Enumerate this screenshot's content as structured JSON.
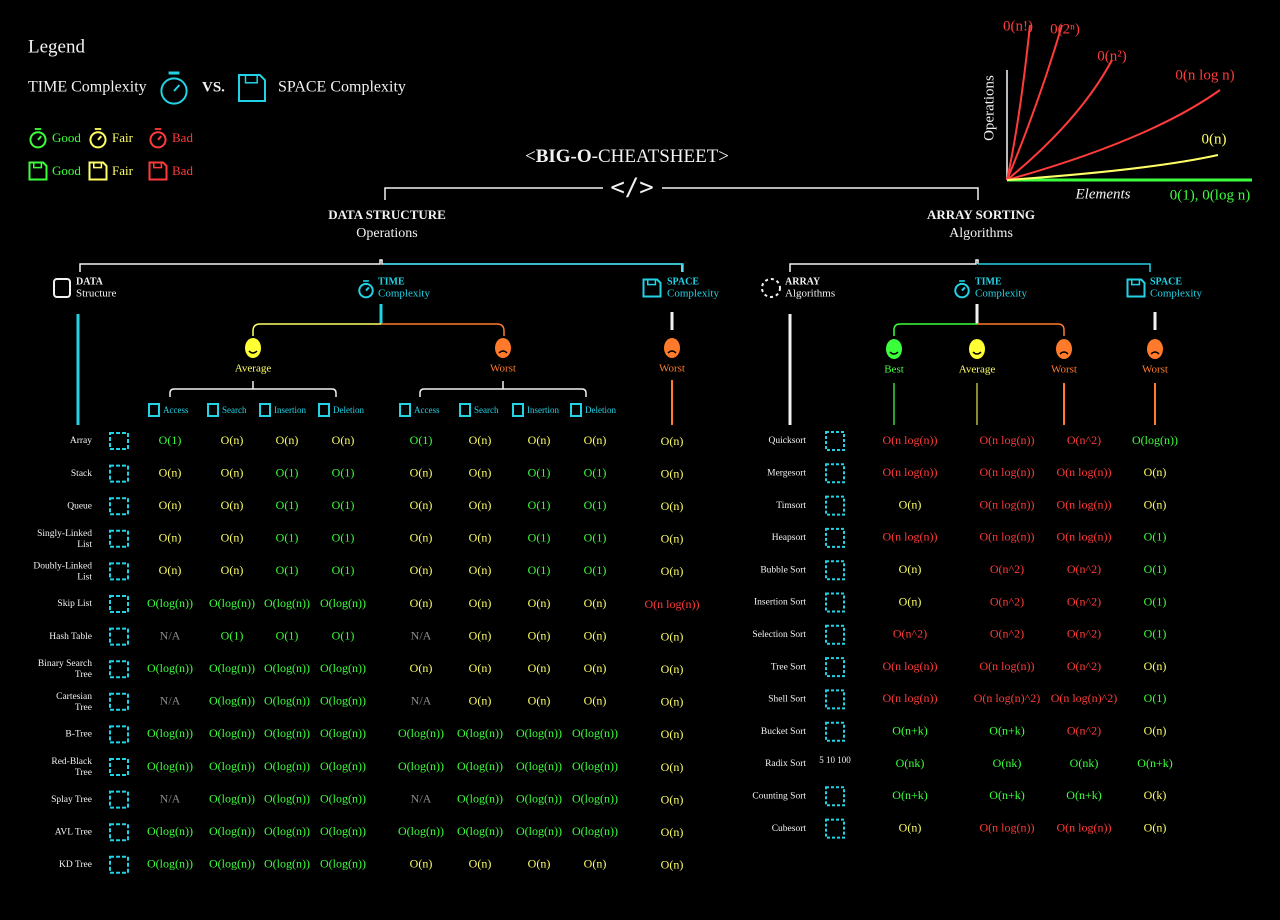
{
  "legend": {
    "title": "Legend",
    "time": "TIME Complexity",
    "vs": "VS.",
    "space": "SPACE Complexity",
    "ratings": [
      {
        "label": "Good",
        "color": "#3cff3c"
      },
      {
        "label": "Fair",
        "color": "#ffff66"
      },
      {
        "label": "Bad",
        "color": "#ff3b3b"
      }
    ]
  },
  "title": {
    "prefix": "<",
    "bold": "BIG-O",
    "suffix": "-CHEATSHEET>",
    "symbol": "</>"
  },
  "graph": {
    "y_label": "Operations",
    "x_label": "Elements",
    "curves": [
      {
        "label": "0(n!)",
        "color": "#ff3b3b"
      },
      {
        "label": "0(2ⁿ)",
        "color": "#ff3b3b"
      },
      {
        "label": "0(n²)",
        "color": "#ff3b3b"
      },
      {
        "label": "0(n log n)",
        "color": "#ff3b3b"
      },
      {
        "label": "0(n)",
        "color": "#ffff66"
      },
      {
        "label": "0(1), 0(log n)",
        "color": "#3cff3c"
      }
    ]
  },
  "na_color": "#8a8a8a",
  "value_rating": {
    "O(1)": 0,
    "O(log(n))": 0,
    "O(n)": 1,
    "O(n log(n))": 2,
    "O(n^2)": 2,
    "O(n log(n)^2)": 2,
    "O(n+k)": 0,
    "O(nk)": 0,
    "O(k)": 1
  },
  "data_structures": {
    "heading": "DATA STRUCTURE",
    "subheading": "Operations",
    "col_structure": [
      "DATA",
      "Structure"
    ],
    "col_time": [
      "TIME",
      "Complexity"
    ],
    "col_space": [
      "SPACE",
      "Complexity"
    ],
    "average": "Average",
    "worst": "Worst",
    "space_worst": "Worst",
    "operations": [
      "Access",
      "Search",
      "Insertion",
      "Deletion"
    ],
    "rows": [
      {
        "name": "Array",
        "time_average": [
          "O(1)",
          "O(n)",
          "O(n)",
          "O(n)"
        ],
        "time_worst": [
          "O(1)",
          "O(n)",
          "O(n)",
          "O(n)"
        ],
        "space": "O(n)"
      },
      {
        "name": "Stack",
        "time_average": [
          "O(n)",
          "O(n)",
          "O(1)",
          "O(1)"
        ],
        "time_worst": [
          "O(n)",
          "O(n)",
          "O(1)",
          "O(1)"
        ],
        "space": "O(n)"
      },
      {
        "name": "Queue",
        "time_average": [
          "O(n)",
          "O(n)",
          "O(1)",
          "O(1)"
        ],
        "time_worst": [
          "O(n)",
          "O(n)",
          "O(1)",
          "O(1)"
        ],
        "space": "O(n)"
      },
      {
        "name": "Singly-Linked List",
        "time_average": [
          "O(n)",
          "O(n)",
          "O(1)",
          "O(1)"
        ],
        "time_worst": [
          "O(n)",
          "O(n)",
          "O(1)",
          "O(1)"
        ],
        "space": "O(n)"
      },
      {
        "name": "Doubly-Linked List",
        "time_average": [
          "O(n)",
          "O(n)",
          "O(1)",
          "O(1)"
        ],
        "time_worst": [
          "O(n)",
          "O(n)",
          "O(1)",
          "O(1)"
        ],
        "space": "O(n)"
      },
      {
        "name": "Skip List",
        "time_average": [
          "O(log(n))",
          "O(log(n))",
          "O(log(n))",
          "O(log(n))"
        ],
        "time_worst": [
          "O(n)",
          "O(n)",
          "O(n)",
          "O(n)"
        ],
        "space": "O(n log(n))"
      },
      {
        "name": "Hash Table",
        "time_average": [
          "N/A",
          "O(1)",
          "O(1)",
          "O(1)"
        ],
        "time_worst": [
          "N/A",
          "O(n)",
          "O(n)",
          "O(n)"
        ],
        "space": "O(n)"
      },
      {
        "name": "Binary Search Tree",
        "time_average": [
          "O(log(n))",
          "O(log(n))",
          "O(log(n))",
          "O(log(n))"
        ],
        "time_worst": [
          "O(n)",
          "O(n)",
          "O(n)",
          "O(n)"
        ],
        "space": "O(n)"
      },
      {
        "name": "Cartesian Tree",
        "time_average": [
          "N/A",
          "O(log(n))",
          "O(log(n))",
          "O(log(n))"
        ],
        "time_worst": [
          "N/A",
          "O(n)",
          "O(n)",
          "O(n)"
        ],
        "space": "O(n)"
      },
      {
        "name": "B-Tree",
        "time_average": [
          "O(log(n))",
          "O(log(n))",
          "O(log(n))",
          "O(log(n))"
        ],
        "time_worst": [
          "O(log(n))",
          "O(log(n))",
          "O(log(n))",
          "O(log(n))"
        ],
        "space": "O(n)"
      },
      {
        "name": "Red-Black Tree",
        "time_average": [
          "O(log(n))",
          "O(log(n))",
          "O(log(n))",
          "O(log(n))"
        ],
        "time_worst": [
          "O(log(n))",
          "O(log(n))",
          "O(log(n))",
          "O(log(n))"
        ],
        "space": "O(n)"
      },
      {
        "name": "Splay Tree",
        "time_average": [
          "N/A",
          "O(log(n))",
          "O(log(n))",
          "O(log(n))"
        ],
        "time_worst": [
          "N/A",
          "O(log(n))",
          "O(log(n))",
          "O(log(n))"
        ],
        "space": "O(n)"
      },
      {
        "name": "AVL Tree",
        "time_average": [
          "O(log(n))",
          "O(log(n))",
          "O(log(n))",
          "O(log(n))"
        ],
        "time_worst": [
          "O(log(n))",
          "O(log(n))",
          "O(log(n))",
          "O(log(n))"
        ],
        "space": "O(n)"
      },
      {
        "name": "KD Tree",
        "time_average": [
          "O(log(n))",
          "O(log(n))",
          "O(log(n))",
          "O(log(n))"
        ],
        "time_worst": [
          "O(n)",
          "O(n)",
          "O(n)",
          "O(n)"
        ],
        "space": "O(n)"
      }
    ]
  },
  "sorting": {
    "heading": "ARRAY SORTING",
    "subheading": "Algorithms",
    "col_array": [
      "ARRAY",
      "Algorithms"
    ],
    "col_time": [
      "TIME",
      "Complexity"
    ],
    "col_space": [
      "SPACE",
      "Complexity"
    ],
    "columns": [
      "Best",
      "Average",
      "Worst",
      "Worst"
    ],
    "rows": [
      {
        "name": "Quicksort",
        "values": [
          "O(n log(n))",
          "O(n log(n))",
          "O(n^2)",
          "O(log(n))"
        ]
      },
      {
        "name": "Mergesort",
        "values": [
          "O(n log(n))",
          "O(n log(n))",
          "O(n log(n))",
          "O(n)"
        ]
      },
      {
        "name": "Timsort",
        "values": [
          "O(n)",
          "O(n log(n))",
          "O(n log(n))",
          "O(n)"
        ]
      },
      {
        "name": "Heapsort",
        "values": [
          "O(n log(n))",
          "O(n log(n))",
          "O(n log(n))",
          "O(1)"
        ]
      },
      {
        "name": "Bubble Sort",
        "values": [
          "O(n)",
          "O(n^2)",
          "O(n^2)",
          "O(1)"
        ]
      },
      {
        "name": "Insertion Sort",
        "values": [
          "O(n)",
          "O(n^2)",
          "O(n^2)",
          "O(1)"
        ]
      },
      {
        "name": "Selection Sort",
        "values": [
          "O(n^2)",
          "O(n^2)",
          "O(n^2)",
          "O(1)"
        ]
      },
      {
        "name": "Tree Sort",
        "values": [
          "O(n log(n))",
          "O(n log(n))",
          "O(n^2)",
          "O(n)"
        ]
      },
      {
        "name": "Shell Sort",
        "values": [
          "O(n log(n))",
          "O(n log(n)^2)",
          "O(n log(n)^2)",
          "O(1)"
        ]
      },
      {
        "name": "Bucket Sort",
        "values": [
          "O(n+k)",
          "O(n+k)",
          "O(n^2)",
          "O(n)"
        ]
      },
      {
        "name": "Radix Sort",
        "icon_text": "5 10 100",
        "values": [
          "O(nk)",
          "O(nk)",
          "O(nk)",
          "O(n+k)"
        ]
      },
      {
        "name": "Counting Sort",
        "values": [
          "O(n+k)",
          "O(n+k)",
          "O(n+k)",
          "O(k)"
        ]
      },
      {
        "name": "Cubesort",
        "values": [
          "O(n)",
          "O(n log(n))",
          "O(n log(n))",
          "O(n)"
        ]
      }
    ]
  }
}
